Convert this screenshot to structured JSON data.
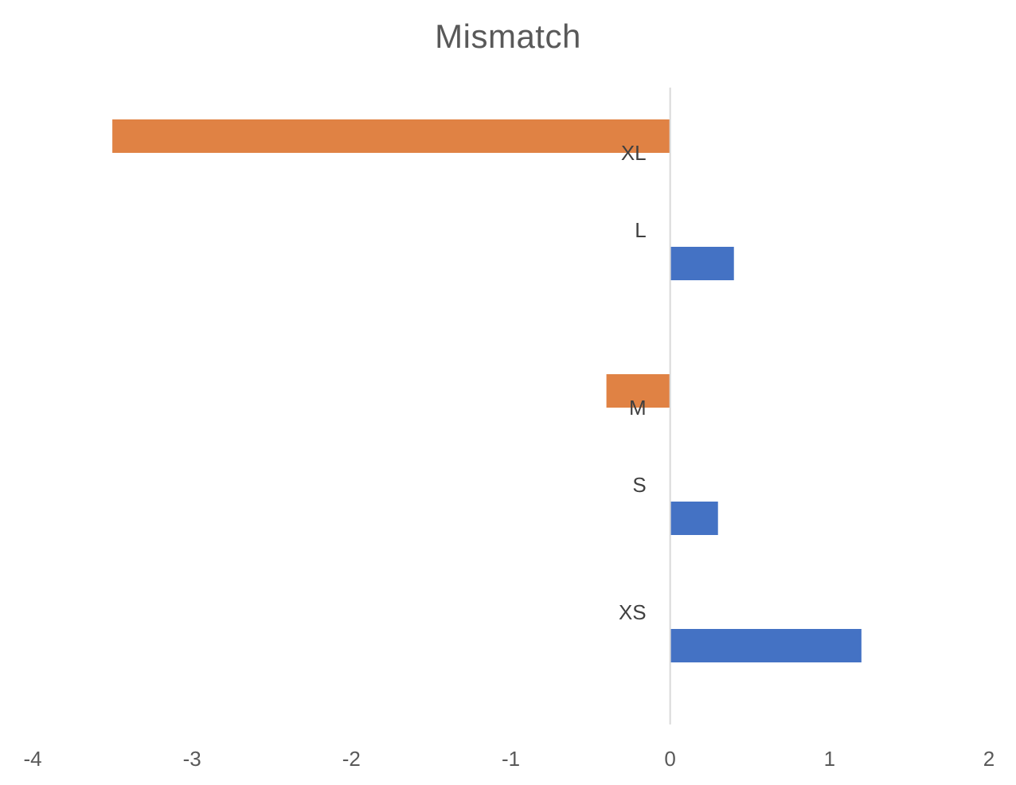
{
  "chart_data": {
    "type": "bar",
    "orientation": "horizontal",
    "title": "Mismatch",
    "xlabel": "",
    "ylabel": "",
    "xlim": [
      -4,
      2
    ],
    "x_ticks": [
      "-4",
      "-3",
      "-2",
      "-1",
      "0",
      "1",
      "2"
    ],
    "categories": [
      "XL",
      "L",
      "M",
      "S",
      "XS"
    ],
    "values": [
      -3.5,
      0.4,
      -0.4,
      0.3,
      1.2
    ],
    "grid": false,
    "legend": "none",
    "colors": {
      "positive": "#4472C4",
      "negative": "#E08244",
      "axis_line": "#D9D9D9",
      "title": "#595959"
    }
  }
}
